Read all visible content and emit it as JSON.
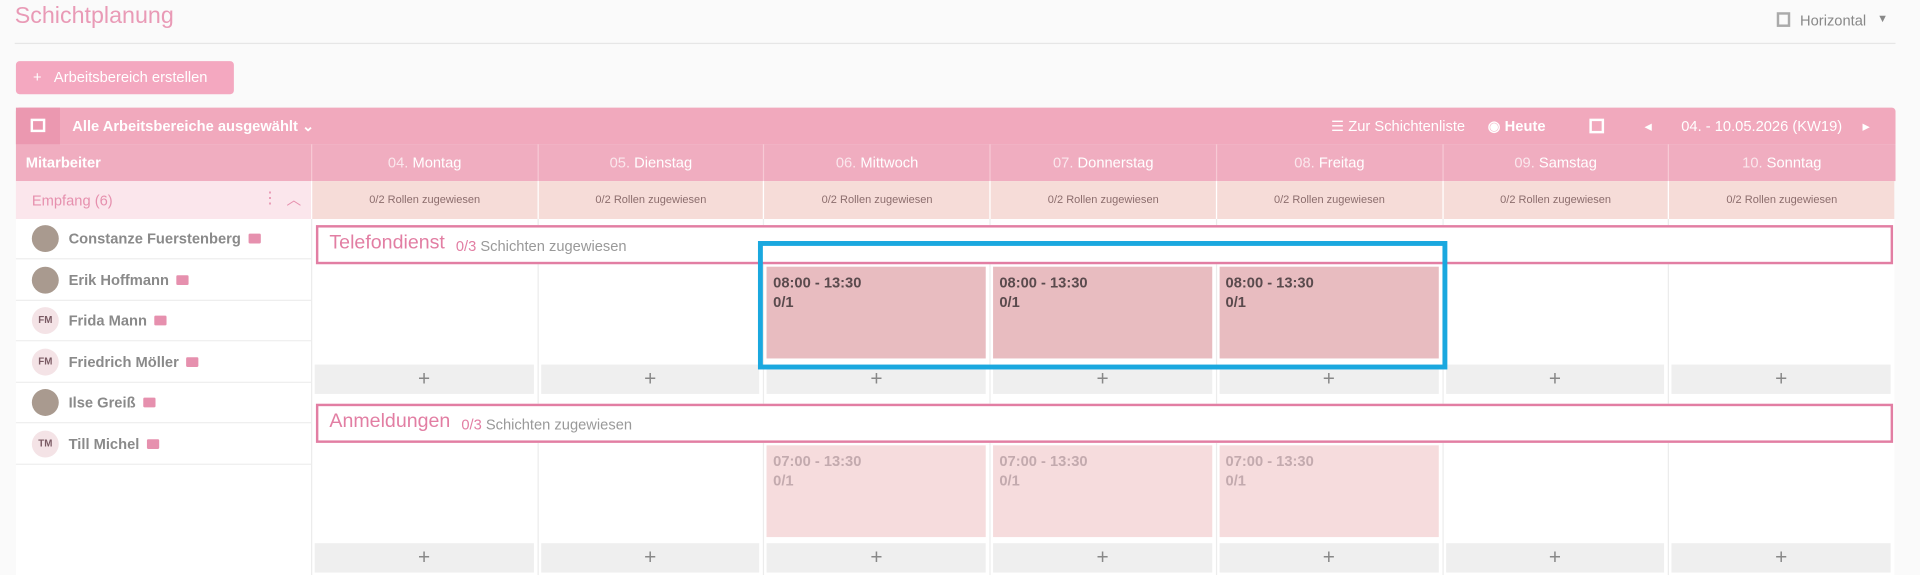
{
  "header": {
    "title": "Schichtplanung",
    "view": "Horizontal"
  },
  "create_button": "Arbeitsbereich erstellen",
  "toolbar": {
    "filter": "Alle Arbeitsbereiche ausgewählt",
    "list_link": "Zur Schichtenliste",
    "today": "Heute",
    "range": "04. - 10.05.2026 (KW19)"
  },
  "grid": {
    "employee_header": "Mitarbeiter",
    "days": [
      {
        "num": "04.",
        "name": "Montag"
      },
      {
        "num": "05.",
        "name": "Dienstag"
      },
      {
        "num": "06.",
        "name": "Mittwoch"
      },
      {
        "num": "07.",
        "name": "Donnerstag"
      },
      {
        "num": "08.",
        "name": "Freitag"
      },
      {
        "num": "09.",
        "name": "Samstag"
      },
      {
        "num": "10.",
        "name": "Sonntag"
      }
    ],
    "group": "Empfang (6)",
    "roles": [
      "0/2 Rollen zugewiesen",
      "0/2 Rollen zugewiesen",
      "0/2 Rollen zugewiesen",
      "0/2 Rollen zugewiesen",
      "0/2 Rollen zugewiesen",
      "0/2 Rollen zugewiesen",
      "0/2 Rollen zugewiesen"
    ]
  },
  "employees": [
    {
      "name": "Constanze Fuerstenberg"
    },
    {
      "name": "Erik Hoffmann"
    },
    {
      "name": "Frida Mann",
      "initials": "FM"
    },
    {
      "name": "Friedrich Möller",
      "initials": "FM"
    },
    {
      "name": "Ilse Greiß"
    },
    {
      "name": "Till Michel",
      "initials": "TM"
    }
  ],
  "sections": [
    {
      "name": "Telefondienst",
      "count": "0/3",
      "label": "Schichten zugewiesen",
      "faded": false,
      "cells": [
        null,
        null,
        {
          "time": "08:00 - 13:30",
          "count": "0/1"
        },
        {
          "time": "08:00 - 13:30",
          "count": "0/1"
        },
        {
          "time": "08:00 - 13:30",
          "count": "0/1"
        },
        null,
        null
      ]
    },
    {
      "name": "Anmeldungen",
      "count": "0/3",
      "label": "Schichten zugewiesen",
      "faded": true,
      "cells": [
        null,
        null,
        {
          "time": "07:00 - 13:30",
          "count": "0/1"
        },
        {
          "time": "07:00 - 13:30",
          "count": "0/1"
        },
        {
          "time": "07:00 - 13:30",
          "count": "0/1"
        },
        null,
        null
      ]
    }
  ]
}
